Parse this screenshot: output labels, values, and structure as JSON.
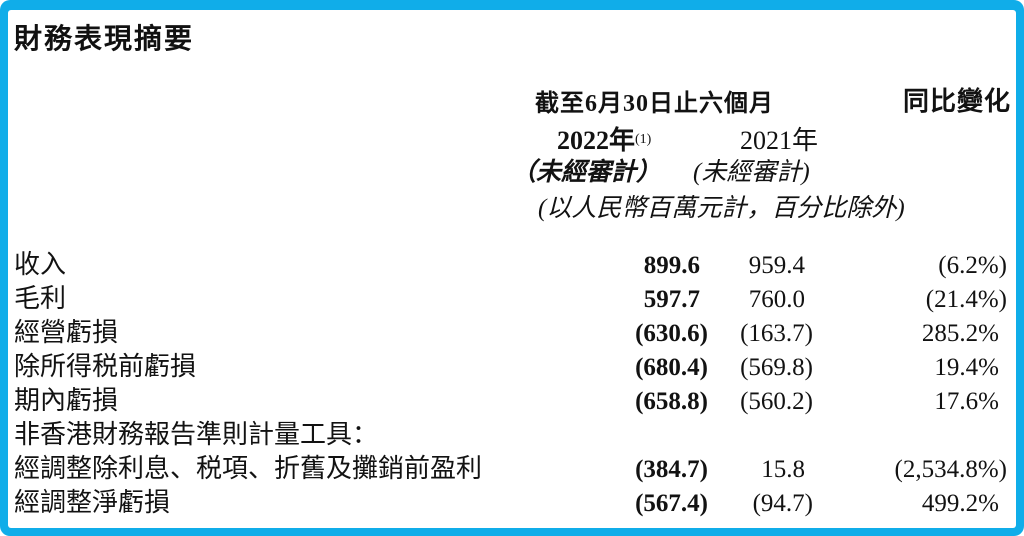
{
  "title": "財務表現摘要",
  "colors": {
    "border": "#10ade9",
    "text": "#121212"
  },
  "table": {
    "period_header": "截至6月30日止六個月",
    "yoy_header": "同比變化",
    "col_2022": {
      "year": "2022年",
      "note": "(1)",
      "unaudited": "（未經審計）"
    },
    "col_2021": {
      "year": "2021年",
      "unaudited": "(未經審計)"
    },
    "unit_note": "(以人民幣百萬元計，百分比除外)",
    "rows": [
      {
        "label": "收入",
        "y2022": "899.6",
        "y2021": "959.4",
        "yoy": "(6.2%)"
      },
      {
        "label": "毛利",
        "y2022": "597.7",
        "y2021": "760.0",
        "yoy": "(21.4%)"
      },
      {
        "label": "經營虧損",
        "y2022": "(630.6)",
        "y2021": "(163.7)",
        "yoy": "285.2%"
      },
      {
        "label": "除所得税前虧損",
        "y2022": "(680.4)",
        "y2021": "(569.8)",
        "yoy": "19.4%"
      },
      {
        "label": "期內虧損",
        "y2022": "(658.8)",
        "y2021": "(560.2)",
        "yoy": "17.6%"
      },
      {
        "label": "非香港財務報告準則計量工具：",
        "y2022": "",
        "y2021": "",
        "yoy": ""
      },
      {
        "label": "經調整除利息、税項、折舊及攤銷前盈利",
        "y2022": "(384.7)",
        "y2021": "15.8",
        "yoy": "(2,534.8%)"
      },
      {
        "label": "經調整淨虧損",
        "y2022": "(567.4)",
        "y2021": "(94.7)",
        "yoy": "499.2%"
      }
    ]
  }
}
